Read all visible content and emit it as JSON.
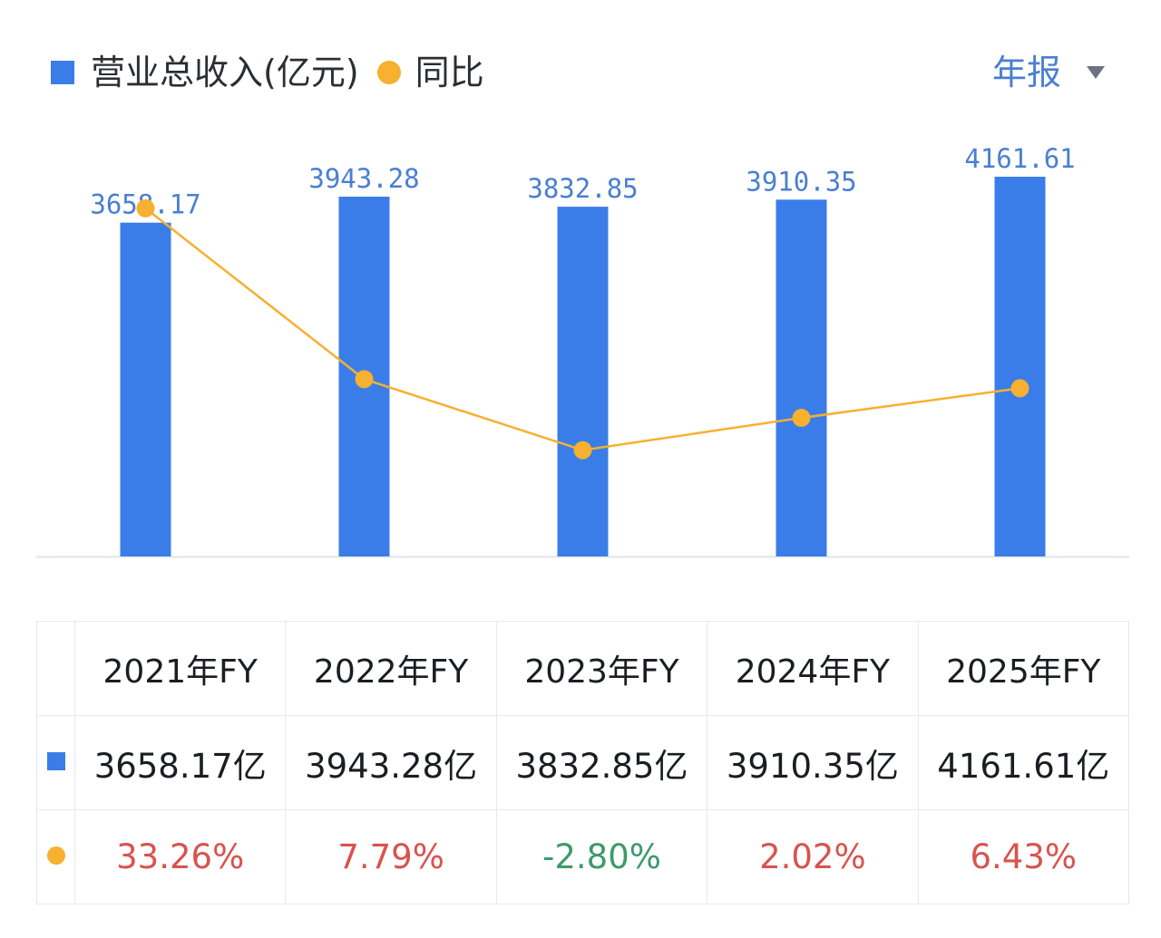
{
  "legend": {
    "revenue_label": "营业总收入(亿元)",
    "yoy_label": "同比",
    "revenue_color": "#3a7de9",
    "yoy_color": "#f7b02f"
  },
  "period_selector": {
    "label": "年报",
    "icon": "caret-down-icon"
  },
  "chart_data": {
    "type": "bar",
    "categories": [
      "2021年FY",
      "2022年FY",
      "2023年FY",
      "2024年FY",
      "2025年FY"
    ],
    "series": [
      {
        "name": "营业总收入(亿元)",
        "type": "bar",
        "values": [
          3658.17,
          3943.28,
          3832.85,
          3910.35,
          4161.61
        ],
        "color": "#3a7de9"
      },
      {
        "name": "同比",
        "type": "line",
        "values": [
          33.26,
          7.79,
          -2.8,
          2.02,
          6.43
        ],
        "unit": "%",
        "color": "#f7b02f"
      }
    ],
    "data_labels": [
      "3658.17",
      "3943.28",
      "3832.85",
      "3910.35",
      "4161.61"
    ],
    "grid": false
  },
  "table": {
    "headers": [
      "2021年FY",
      "2022年FY",
      "2023年FY",
      "2024年FY",
      "2025年FY"
    ],
    "revenue_row": [
      "3658.17亿",
      "3943.28亿",
      "3832.85亿",
      "3910.35亿",
      "4161.61亿"
    ],
    "yoy_row": [
      "33.26%",
      "7.79%",
      "-2.80%",
      "2.02%",
      "6.43%"
    ],
    "positive_color": "#d9534f",
    "negative_color": "#3d9a6b"
  }
}
